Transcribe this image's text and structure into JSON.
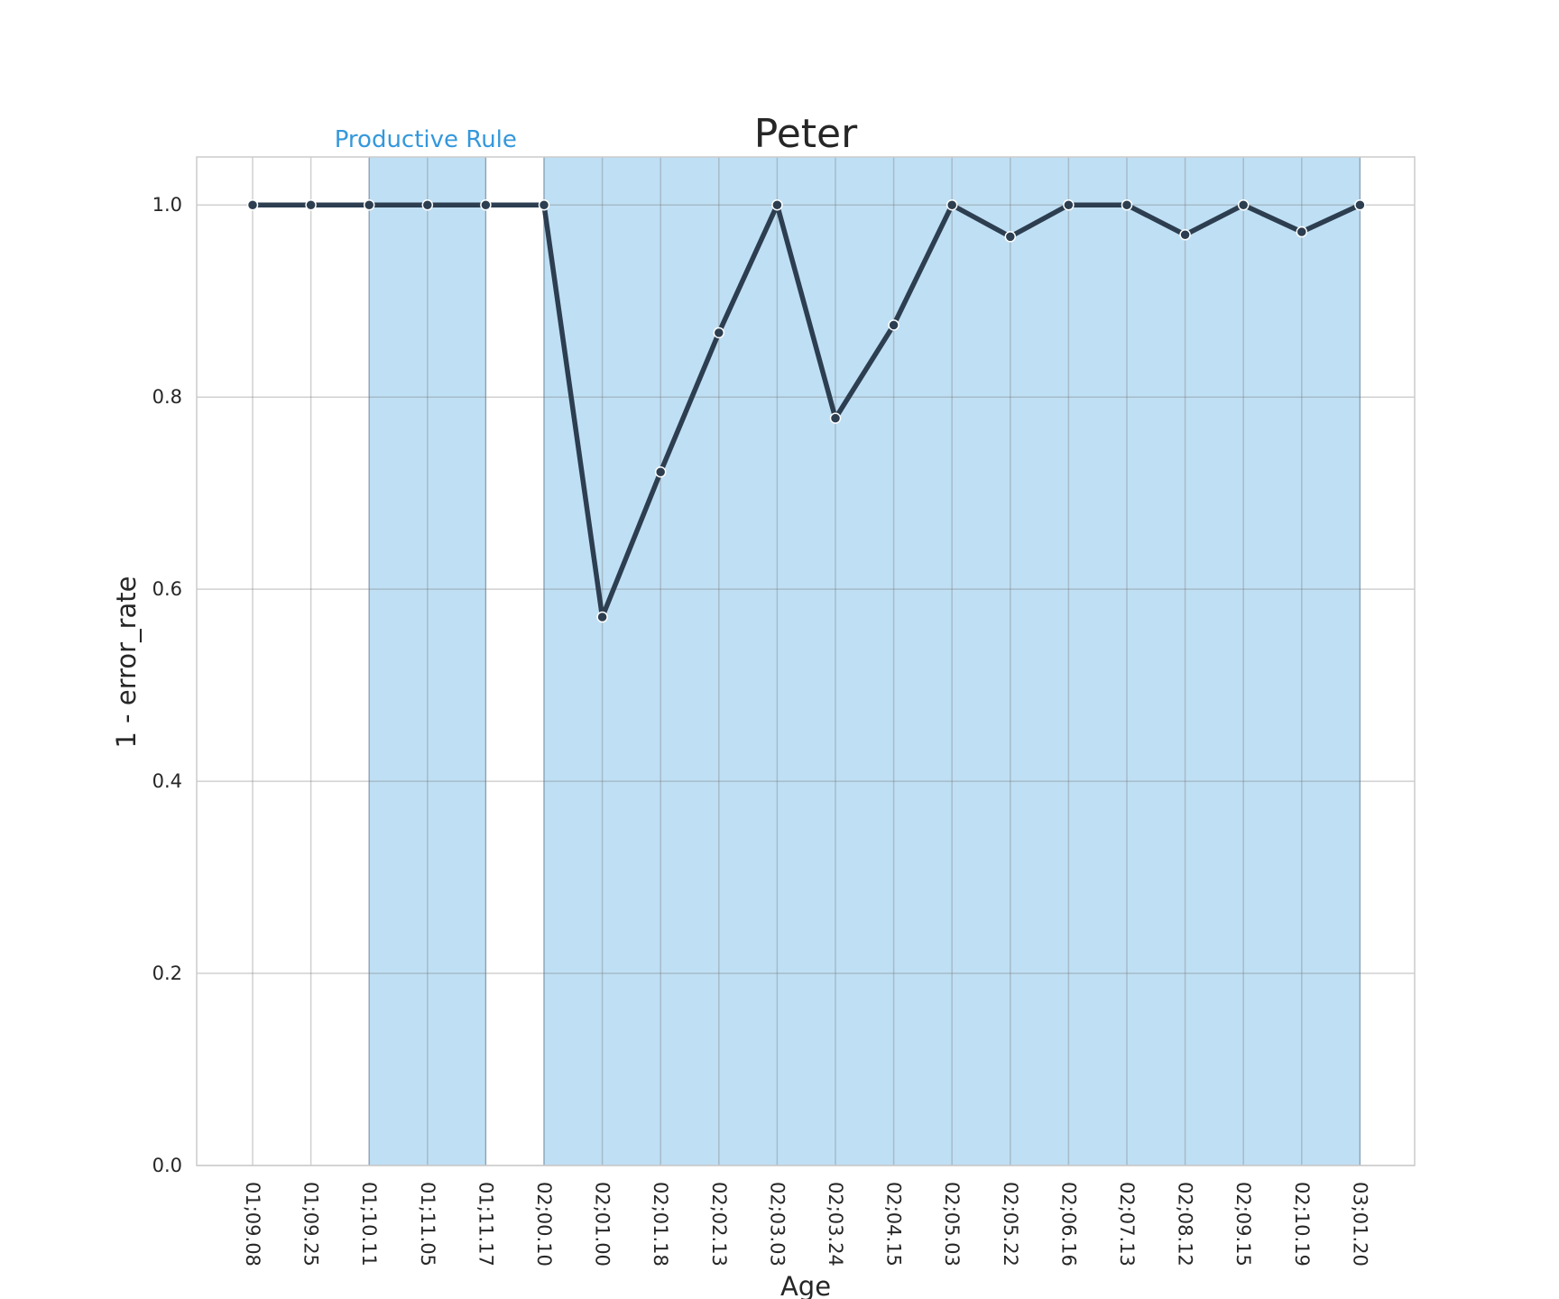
{
  "chart_data": {
    "type": "line",
    "title": "Peter",
    "xlabel": "Age",
    "ylabel": "1 - error_rate",
    "categories": [
      "01;09.08",
      "01;09.25",
      "01;10.11",
      "01;11.05",
      "01;11.17",
      "02;00.10",
      "02;01.00",
      "02;01.18",
      "02;02.13",
      "02;03.03",
      "02;03.24",
      "02;04.15",
      "02;05.03",
      "02;05.22",
      "02;06.16",
      "02;07.13",
      "02;08.12",
      "02;09.15",
      "02;10.19",
      "03;01.20"
    ],
    "values": [
      1.0,
      1.0,
      1.0,
      1.0,
      1.0,
      1.0,
      0.571,
      0.722,
      0.867,
      1.0,
      0.778,
      0.875,
      1.0,
      0.967,
      1.0,
      1.0,
      0.969,
      1.0,
      0.972,
      1.0
    ],
    "ylim": [
      0,
      1.05
    ],
    "yticks": [
      0.0,
      0.2,
      0.4,
      0.6,
      0.8,
      1.0
    ],
    "grid": true,
    "line_color": "#2c3e50",
    "shaded_regions": [
      {
        "start": "01;10.11",
        "end": "01;11.17"
      },
      {
        "start": "02;00.10",
        "end": "03;01.20"
      }
    ],
    "shade_color": "#bfdff4",
    "annotation": {
      "text": "Productive Rule",
      "color": "#3498db"
    }
  }
}
